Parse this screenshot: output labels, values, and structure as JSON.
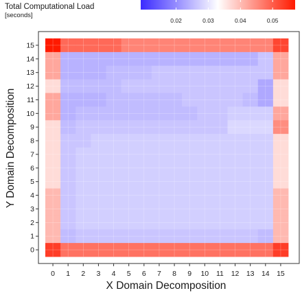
{
  "chart_data": {
    "type": "heatmap",
    "xlabel": "X Domain Decomposition",
    "ylabel": "Y Domain Decomposition",
    "x_ticks": [
      0,
      1,
      2,
      3,
      4,
      5,
      6,
      7,
      8,
      9,
      10,
      11,
      12,
      13,
      14,
      15
    ],
    "y_ticks": [
      0,
      1,
      2,
      3,
      4,
      5,
      6,
      7,
      8,
      9,
      10,
      11,
      12,
      13,
      14,
      15
    ],
    "xlim": [
      -0.5,
      15.5
    ],
    "ylim": [
      -0.5,
      15.5
    ],
    "grid": true,
    "legend": {
      "title_line1": "Total Computational Load",
      "title_line2": "[seconds]",
      "placement": "top",
      "ticks": [
        "0.02",
        "0.03",
        "0.04",
        "0.05"
      ],
      "tick_values": [
        0.02,
        0.03,
        0.04,
        0.05
      ],
      "min": 0.009,
      "mid": 0.031,
      "max": 0.057,
      "color_low": "#3b2bff",
      "color_mid": "#ffffff",
      "color_high": "#ff1a00"
    },
    "rows_top_to_bottom": [
      {
        "y": 15,
        "values": [
          0.057,
          0.048,
          0.048,
          0.048,
          0.048,
          0.045,
          0.045,
          0.045,
          0.045,
          0.045,
          0.045,
          0.045,
          0.045,
          0.045,
          0.045,
          0.052
        ]
      },
      {
        "y": 14,
        "values": [
          0.041,
          0.023,
          0.023,
          0.023,
          0.023,
          0.023,
          0.023,
          0.023,
          0.023,
          0.023,
          0.023,
          0.023,
          0.023,
          0.023,
          0.025,
          0.041
        ]
      },
      {
        "y": 13,
        "values": [
          0.041,
          0.023,
          0.023,
          0.023,
          0.024,
          0.024,
          0.024,
          0.025,
          0.025,
          0.025,
          0.025,
          0.025,
          0.025,
          0.025,
          0.025,
          0.041
        ]
      },
      {
        "y": 12,
        "values": [
          0.035,
          0.024,
          0.024,
          0.024,
          0.024,
          0.025,
          0.025,
          0.025,
          0.025,
          0.025,
          0.025,
          0.025,
          0.025,
          0.025,
          0.022,
          0.035
        ]
      },
      {
        "y": 11,
        "values": [
          0.041,
          0.023,
          0.023,
          0.023,
          0.024,
          0.024,
          0.024,
          0.024,
          0.024,
          0.025,
          0.025,
          0.025,
          0.025,
          0.024,
          0.022,
          0.035
        ]
      },
      {
        "y": 10,
        "values": [
          0.041,
          0.023,
          0.024,
          0.024,
          0.024,
          0.024,
          0.024,
          0.024,
          0.024,
          0.024,
          0.025,
          0.025,
          0.026,
          0.026,
          0.026,
          0.041
        ]
      },
      {
        "y": 9,
        "values": [
          0.035,
          0.024,
          0.025,
          0.025,
          0.025,
          0.025,
          0.025,
          0.025,
          0.025,
          0.025,
          0.025,
          0.025,
          0.027,
          0.027,
          0.027,
          0.044
        ]
      },
      {
        "y": 8,
        "values": [
          0.035,
          0.025,
          0.025,
          0.026,
          0.026,
          0.026,
          0.026,
          0.026,
          0.026,
          0.026,
          0.026,
          0.026,
          0.026,
          0.026,
          0.026,
          0.035
        ]
      },
      {
        "y": 7,
        "values": [
          0.035,
          0.025,
          0.026,
          0.026,
          0.026,
          0.026,
          0.026,
          0.026,
          0.026,
          0.026,
          0.026,
          0.026,
          0.026,
          0.026,
          0.026,
          0.035
        ]
      },
      {
        "y": 6,
        "values": [
          0.035,
          0.025,
          0.026,
          0.026,
          0.026,
          0.026,
          0.026,
          0.026,
          0.026,
          0.026,
          0.026,
          0.026,
          0.026,
          0.026,
          0.026,
          0.035
        ]
      },
      {
        "y": 5,
        "values": [
          0.035,
          0.025,
          0.026,
          0.026,
          0.026,
          0.026,
          0.026,
          0.026,
          0.026,
          0.026,
          0.026,
          0.026,
          0.026,
          0.026,
          0.026,
          0.035
        ]
      },
      {
        "y": 4,
        "values": [
          0.039,
          0.025,
          0.026,
          0.026,
          0.026,
          0.026,
          0.026,
          0.026,
          0.026,
          0.026,
          0.026,
          0.026,
          0.026,
          0.026,
          0.026,
          0.039
        ]
      },
      {
        "y": 3,
        "values": [
          0.039,
          0.025,
          0.026,
          0.026,
          0.026,
          0.026,
          0.026,
          0.026,
          0.026,
          0.026,
          0.026,
          0.026,
          0.026,
          0.026,
          0.026,
          0.039
        ]
      },
      {
        "y": 2,
        "values": [
          0.039,
          0.025,
          0.026,
          0.026,
          0.026,
          0.026,
          0.026,
          0.026,
          0.026,
          0.026,
          0.026,
          0.026,
          0.026,
          0.026,
          0.026,
          0.039
        ]
      },
      {
        "y": 1,
        "values": [
          0.039,
          0.024,
          0.025,
          0.025,
          0.025,
          0.025,
          0.025,
          0.025,
          0.025,
          0.025,
          0.025,
          0.025,
          0.025,
          0.025,
          0.024,
          0.039
        ]
      },
      {
        "y": 0,
        "values": [
          0.053,
          0.047,
          0.047,
          0.047,
          0.047,
          0.047,
          0.047,
          0.047,
          0.047,
          0.047,
          0.047,
          0.047,
          0.047,
          0.047,
          0.047,
          0.053
        ]
      }
    ]
  }
}
